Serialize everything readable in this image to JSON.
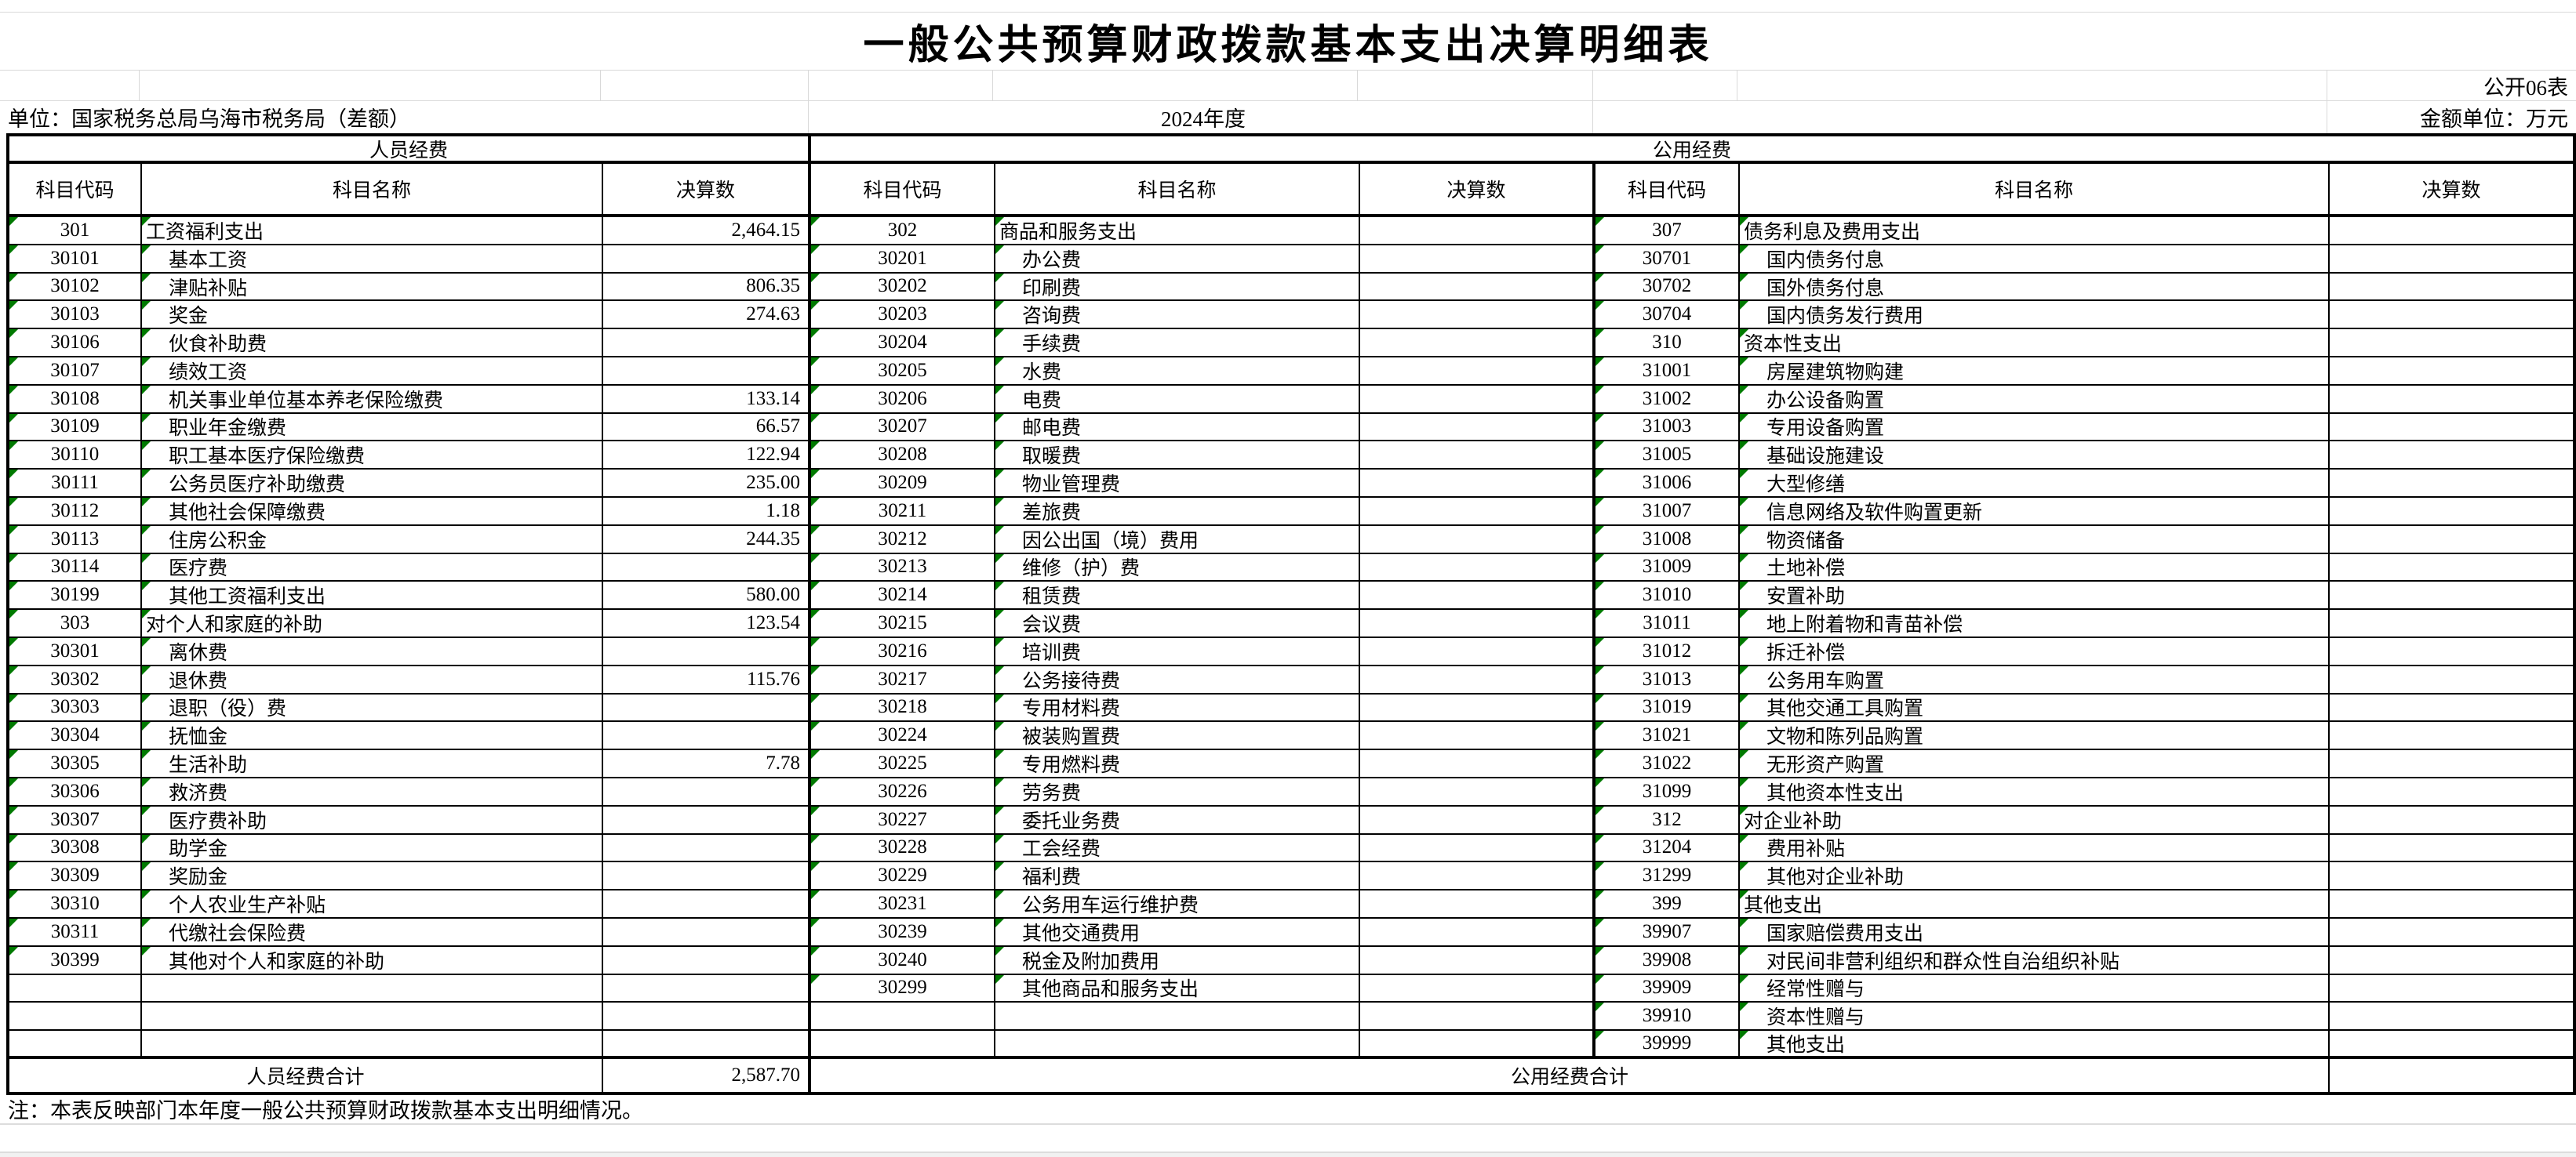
{
  "sheet": {
    "title": "一般公共预算财政拨款基本支出决算明细表",
    "doc_code": "公开06表",
    "unit": "单位：国家税务总局乌海市税务局（差额）",
    "year": "2024年度",
    "amount_unit": "金额单位：万元",
    "note": "注：本表反映部门本年度一般公共预算财政拨款基本支出明细情况。"
  },
  "colors": {
    "flag_green": "#007a00",
    "grid_line": "#d9d9d9",
    "table_border": "#000000"
  },
  "table": {
    "group_headers": [
      "人员经费",
      "公用经费"
    ],
    "col_headers": [
      "科目代码",
      "科目名称",
      "决算数"
    ],
    "totals": {
      "personnel_label": "人员经费合计",
      "personnel_value": "2,587.70",
      "public_label": "公用经费合计",
      "public_value": ""
    },
    "personnel_rows": [
      [
        "301",
        "工资福利支出",
        "2,464.15",
        1
      ],
      [
        "30101",
        "基本工资",
        "",
        2
      ],
      [
        "30102",
        "津贴补贴",
        "806.35",
        2
      ],
      [
        "30103",
        "奖金",
        "274.63",
        2
      ],
      [
        "30106",
        "伙食补助费",
        "",
        2
      ],
      [
        "30107",
        "绩效工资",
        "",
        2
      ],
      [
        "30108",
        "机关事业单位基本养老保险缴费",
        "133.14",
        2
      ],
      [
        "30109",
        "职业年金缴费",
        "66.57",
        2
      ],
      [
        "30110",
        "职工基本医疗保险缴费",
        "122.94",
        2
      ],
      [
        "30111",
        "公务员医疗补助缴费",
        "235.00",
        2
      ],
      [
        "30112",
        "其他社会保障缴费",
        "1.18",
        2
      ],
      [
        "30113",
        "住房公积金",
        "244.35",
        2
      ],
      [
        "30114",
        "医疗费",
        "",
        2
      ],
      [
        "30199",
        "其他工资福利支出",
        "580.00",
        2
      ],
      [
        "303",
        "对个人和家庭的补助",
        "123.54",
        1
      ],
      [
        "30301",
        "离休费",
        "",
        2
      ],
      [
        "30302",
        "退休费",
        "115.76",
        2
      ],
      [
        "30303",
        "退职（役）费",
        "",
        2
      ],
      [
        "30304",
        "抚恤金",
        "",
        2
      ],
      [
        "30305",
        "生活补助",
        "7.78",
        2
      ],
      [
        "30306",
        "救济费",
        "",
        2
      ],
      [
        "30307",
        "医疗费补助",
        "",
        2
      ],
      [
        "30308",
        "助学金",
        "",
        2
      ],
      [
        "30309",
        "奖励金",
        "",
        2
      ],
      [
        "30310",
        "个人农业生产补贴",
        "",
        2
      ],
      [
        "30311",
        "代缴社会保险费",
        "",
        2
      ],
      [
        "30399",
        "其他对个人和家庭的补助",
        "",
        2
      ],
      [
        "",
        "",
        "",
        2
      ],
      [
        "",
        "",
        "",
        2
      ],
      [
        "",
        "",
        "",
        2
      ]
    ],
    "goods_rows": [
      [
        "302",
        "商品和服务支出",
        "",
        1
      ],
      [
        "30201",
        "办公费",
        "",
        2
      ],
      [
        "30202",
        "印刷费",
        "",
        2
      ],
      [
        "30203",
        "咨询费",
        "",
        2
      ],
      [
        "30204",
        "手续费",
        "",
        2
      ],
      [
        "30205",
        "水费",
        "",
        2
      ],
      [
        "30206",
        "电费",
        "",
        2
      ],
      [
        "30207",
        "邮电费",
        "",
        2
      ],
      [
        "30208",
        "取暖费",
        "",
        2
      ],
      [
        "30209",
        "物业管理费",
        "",
        2
      ],
      [
        "30211",
        "差旅费",
        "",
        2
      ],
      [
        "30212",
        "因公出国（境）费用",
        "",
        2
      ],
      [
        "30213",
        "维修（护）费",
        "",
        2
      ],
      [
        "30214",
        "租赁费",
        "",
        2
      ],
      [
        "30215",
        "会议费",
        "",
        2
      ],
      [
        "30216",
        "培训费",
        "",
        2
      ],
      [
        "30217",
        "公务接待费",
        "",
        2
      ],
      [
        "30218",
        "专用材料费",
        "",
        2
      ],
      [
        "30224",
        "被装购置费",
        "",
        2
      ],
      [
        "30225",
        "专用燃料费",
        "",
        2
      ],
      [
        "30226",
        "劳务费",
        "",
        2
      ],
      [
        "30227",
        "委托业务费",
        "",
        2
      ],
      [
        "30228",
        "工会经费",
        "",
        2
      ],
      [
        "30229",
        "福利费",
        "",
        2
      ],
      [
        "30231",
        "公务用车运行维护费",
        "",
        2
      ],
      [
        "30239",
        "其他交通费用",
        "",
        2
      ],
      [
        "30240",
        "税金及附加费用",
        "",
        2
      ],
      [
        "30299",
        "其他商品和服务支出",
        "",
        2
      ],
      [
        "",
        "",
        "",
        2
      ],
      [
        "",
        "",
        "",
        2
      ]
    ],
    "capital_rows": [
      [
        "307",
        "债务利息及费用支出",
        "",
        1
      ],
      [
        "30701",
        "国内债务付息",
        "",
        2
      ],
      [
        "30702",
        "国外债务付息",
        "",
        2
      ],
      [
        "30704",
        "国内债务发行费用",
        "",
        2
      ],
      [
        "310",
        "资本性支出",
        "",
        1
      ],
      [
        "31001",
        "房屋建筑物购建",
        "",
        2
      ],
      [
        "31002",
        "办公设备购置",
        "",
        2
      ],
      [
        "31003",
        "专用设备购置",
        "",
        2
      ],
      [
        "31005",
        "基础设施建设",
        "",
        2
      ],
      [
        "31006",
        "大型修缮",
        "",
        2
      ],
      [
        "31007",
        "信息网络及软件购置更新",
        "",
        2
      ],
      [
        "31008",
        "物资储备",
        "",
        2
      ],
      [
        "31009",
        "土地补偿",
        "",
        2
      ],
      [
        "31010",
        "安置补助",
        "",
        2
      ],
      [
        "31011",
        "地上附着物和青苗补偿",
        "",
        2
      ],
      [
        "31012",
        "拆迁补偿",
        "",
        2
      ],
      [
        "31013",
        "公务用车购置",
        "",
        2
      ],
      [
        "31019",
        "其他交通工具购置",
        "",
        2
      ],
      [
        "31021",
        "文物和陈列品购置",
        "",
        2
      ],
      [
        "31022",
        "无形资产购置",
        "",
        2
      ],
      [
        "31099",
        "其他资本性支出",
        "",
        2
      ],
      [
        "312",
        "对企业补助",
        "",
        1
      ],
      [
        "31204",
        "费用补贴",
        "",
        2
      ],
      [
        "31299",
        "其他对企业补助",
        "",
        2
      ],
      [
        "399",
        "其他支出",
        "",
        1
      ],
      [
        "39907",
        "国家赔偿费用支出",
        "",
        2
      ],
      [
        "39908",
        "对民间非营利组织和群众性自治组织补贴",
        "",
        2
      ],
      [
        "39909",
        "经常性赠与",
        "",
        2
      ],
      [
        "39910",
        "资本性赠与",
        "",
        2
      ],
      [
        "39999",
        "其他支出",
        "",
        2
      ]
    ]
  }
}
